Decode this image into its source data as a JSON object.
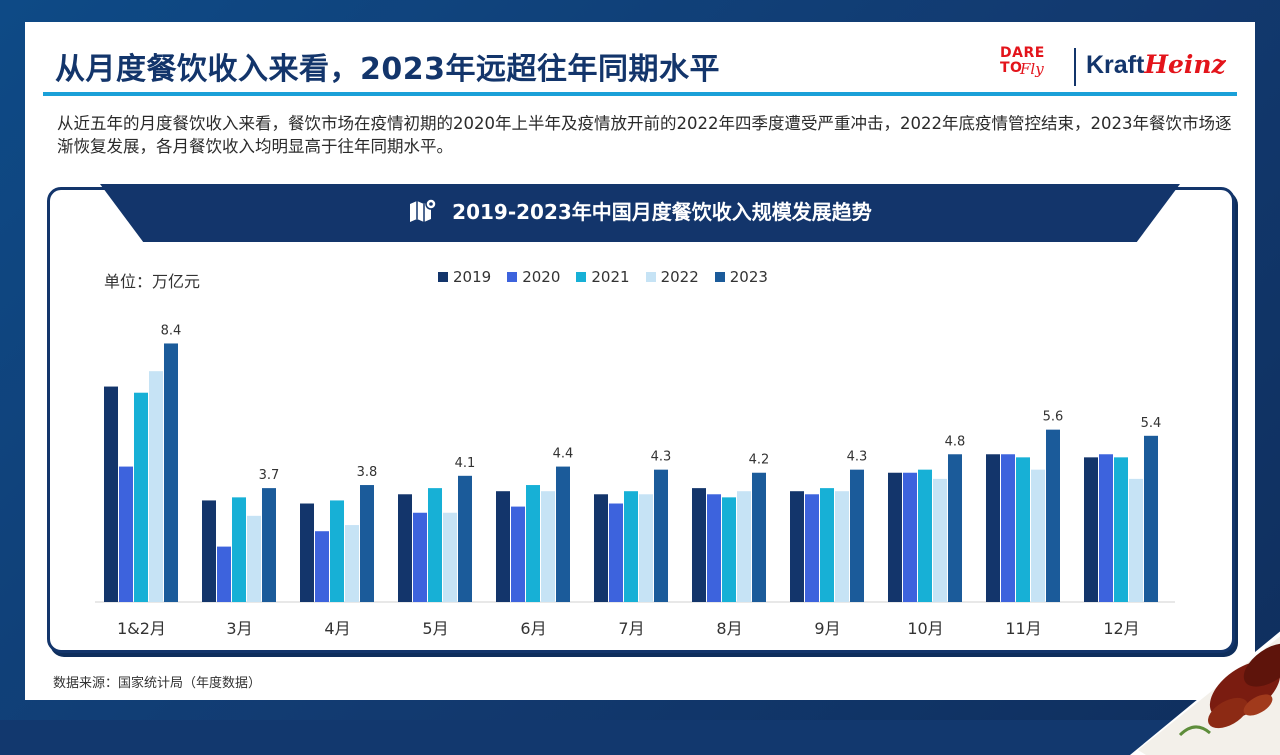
{
  "title": "从月度餐饮收入来看，2023年远超往年同期水平",
  "logo": {
    "dare": "DARE",
    "to": "TO",
    "fly": "Fly",
    "kraft": "Kraft",
    "heinz": "Heinz"
  },
  "intro": "从近五年的月度餐饮收入来看，餐饮市场在疫情初期的2020年上半年及疫情放开前的2022年四季度遭受严重冲击，2022年底疫情管控结束，2023年餐饮市场逐渐恢复发展，各月餐饮收入均明显高于往年同期水平。",
  "source": "数据来源：国家统计局（年度数据）",
  "colors": {
    "accent": "#1aa0d8",
    "navy": "#13356b"
  },
  "chart_data": {
    "type": "bar",
    "title": "2019-2023年中国月度餐饮收入规模发展趋势",
    "unit_label": "单位：万亿元",
    "categories": [
      "1&2月",
      "3月",
      "4月",
      "5月",
      "6月",
      "7月",
      "8月",
      "9月",
      "10月",
      "11月",
      "12月"
    ],
    "series": [
      {
        "name": "2019",
        "color": "#13356b",
        "values": [
          7.0,
          3.3,
          3.2,
          3.5,
          3.6,
          3.5,
          3.7,
          3.6,
          4.2,
          4.8,
          4.7
        ]
      },
      {
        "name": "2020",
        "color": "#3d63dd",
        "values": [
          4.4,
          1.8,
          2.3,
          2.9,
          3.1,
          3.2,
          3.5,
          3.5,
          4.2,
          4.8,
          4.8
        ]
      },
      {
        "name": "2021",
        "color": "#17b0d6",
        "values": [
          6.8,
          3.4,
          3.3,
          3.7,
          3.8,
          3.6,
          3.4,
          3.7,
          4.3,
          4.7,
          4.7
        ]
      },
      {
        "name": "2022",
        "color": "#c6e3f5",
        "values": [
          7.5,
          2.8,
          2.5,
          2.9,
          3.6,
          3.5,
          3.6,
          3.6,
          4.0,
          4.3,
          4.0
        ]
      },
      {
        "name": "2023",
        "color": "#1b5b9a",
        "values": [
          8.4,
          3.7,
          3.8,
          4.1,
          4.4,
          4.3,
          4.2,
          4.3,
          4.8,
          5.6,
          5.4
        ]
      }
    ],
    "data_labels": [
      "8.4",
      "3.7",
      "3.8",
      "4.1",
      "4.4",
      "4.3",
      "4.2",
      "4.3",
      "4.8",
      "5.6",
      "5.4"
    ],
    "ylim": [
      0,
      9
    ],
    "grid": false,
    "legend_position": "top"
  }
}
